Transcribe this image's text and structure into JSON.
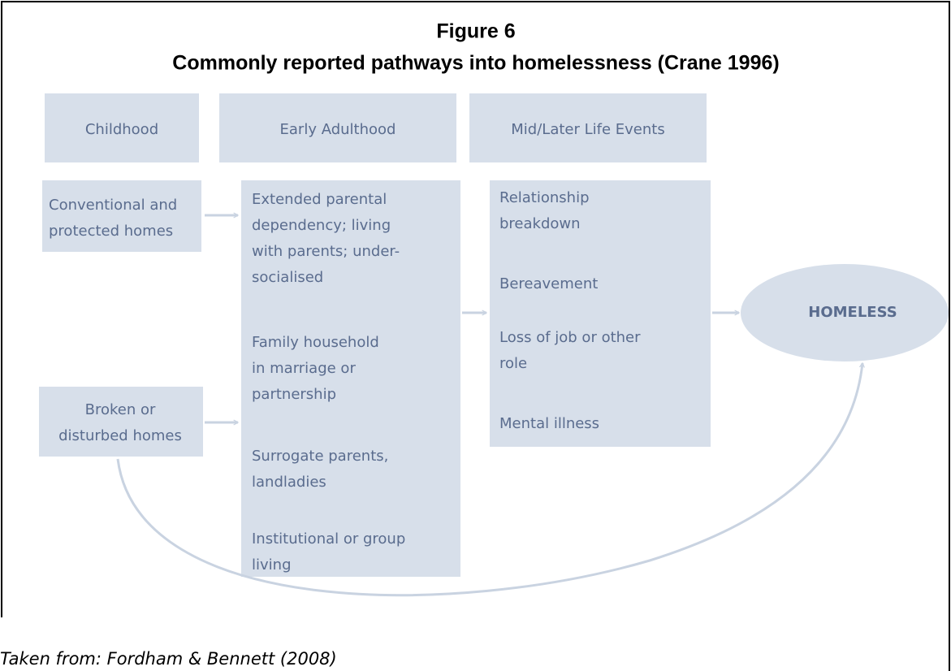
{
  "title": "Figure 6",
  "subtitle": "Commonly reported pathways into homelessness (Crane 1996)",
  "headers": [
    "Childhood",
    "Early Adulthood",
    "Mid/Later Life Events"
  ],
  "childhood": [
    [
      "Conventional and",
      "protected homes"
    ],
    [
      "Broken or",
      "disturbed homes"
    ]
  ],
  "early_adulthood": [
    [
      "Extended parental",
      "dependency; living",
      "with parents; under-",
      "socialised"
    ],
    [
      "Family household",
      "in marriage or",
      "partnership"
    ],
    [
      "Surrogate parents,",
      "landladies"
    ],
    [
      "Institutional or group",
      "living"
    ]
  ],
  "mid_later": [
    [
      "Relationship",
      "breakdown"
    ],
    [
      "Bereavement"
    ],
    [
      "Loss of job or other",
      "role"
    ],
    [
      "Mental illness"
    ]
  ],
  "outcome": "HOMELESS",
  "source": "Taken from: Fordham & Bennett (2008)"
}
